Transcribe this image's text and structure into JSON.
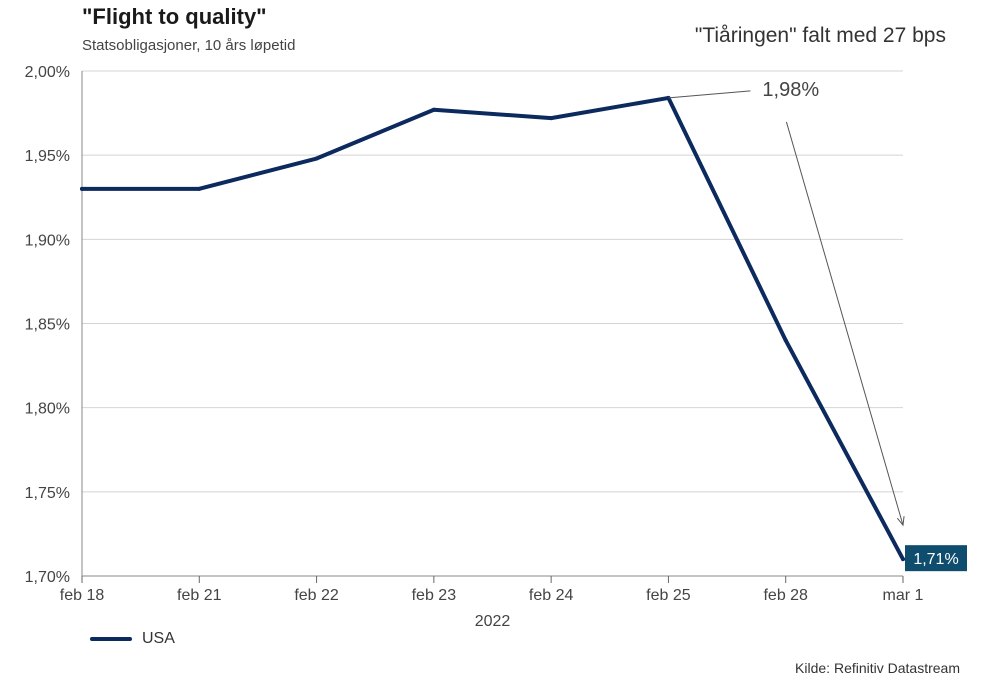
{
  "header": {
    "title": "\"Flight to quality\"",
    "subtitle": "Statsobligasjoner, 10 års løpetid",
    "note": "\"Tiåringen\" falt med 27 bps"
  },
  "footer": {
    "source": "Kilde: Refinitiv Datastream"
  },
  "colors": {
    "series": "#0c2a5e",
    "end_label_bg": "#0f4d6e",
    "grid": "#d4d4d4"
  },
  "chart_data": {
    "type": "line",
    "title": "\"Flight to quality\"",
    "subtitle": "Statsobligasjoner, 10 års løpetid",
    "categories": [
      "feb 18",
      "feb 21",
      "feb 22",
      "feb 23",
      "feb 24",
      "feb 25",
      "feb 28",
      "mar 1"
    ],
    "xlabel": "2022",
    "ylabel": "",
    "ylim": [
      1.7,
      2.0
    ],
    "yticks": [
      1.7,
      1.75,
      1.8,
      1.85,
      1.9,
      1.95,
      2.0
    ],
    "ytick_labels": [
      "1,70%",
      "1,75%",
      "1,80%",
      "1,85%",
      "1,90%",
      "1,95%",
      "2,00%"
    ],
    "grid": true,
    "legend_position": "bottom-left",
    "series": [
      {
        "name": "USA",
        "values": [
          1.93,
          1.93,
          1.948,
          1.977,
          1.972,
          1.984,
          1.84,
          1.71
        ]
      }
    ],
    "annotations": [
      {
        "text": "1,98%",
        "category": "feb 25",
        "value": 1.984
      },
      {
        "text": "1,71%",
        "category": "mar 1",
        "value": 1.71,
        "boxed": true
      }
    ]
  }
}
